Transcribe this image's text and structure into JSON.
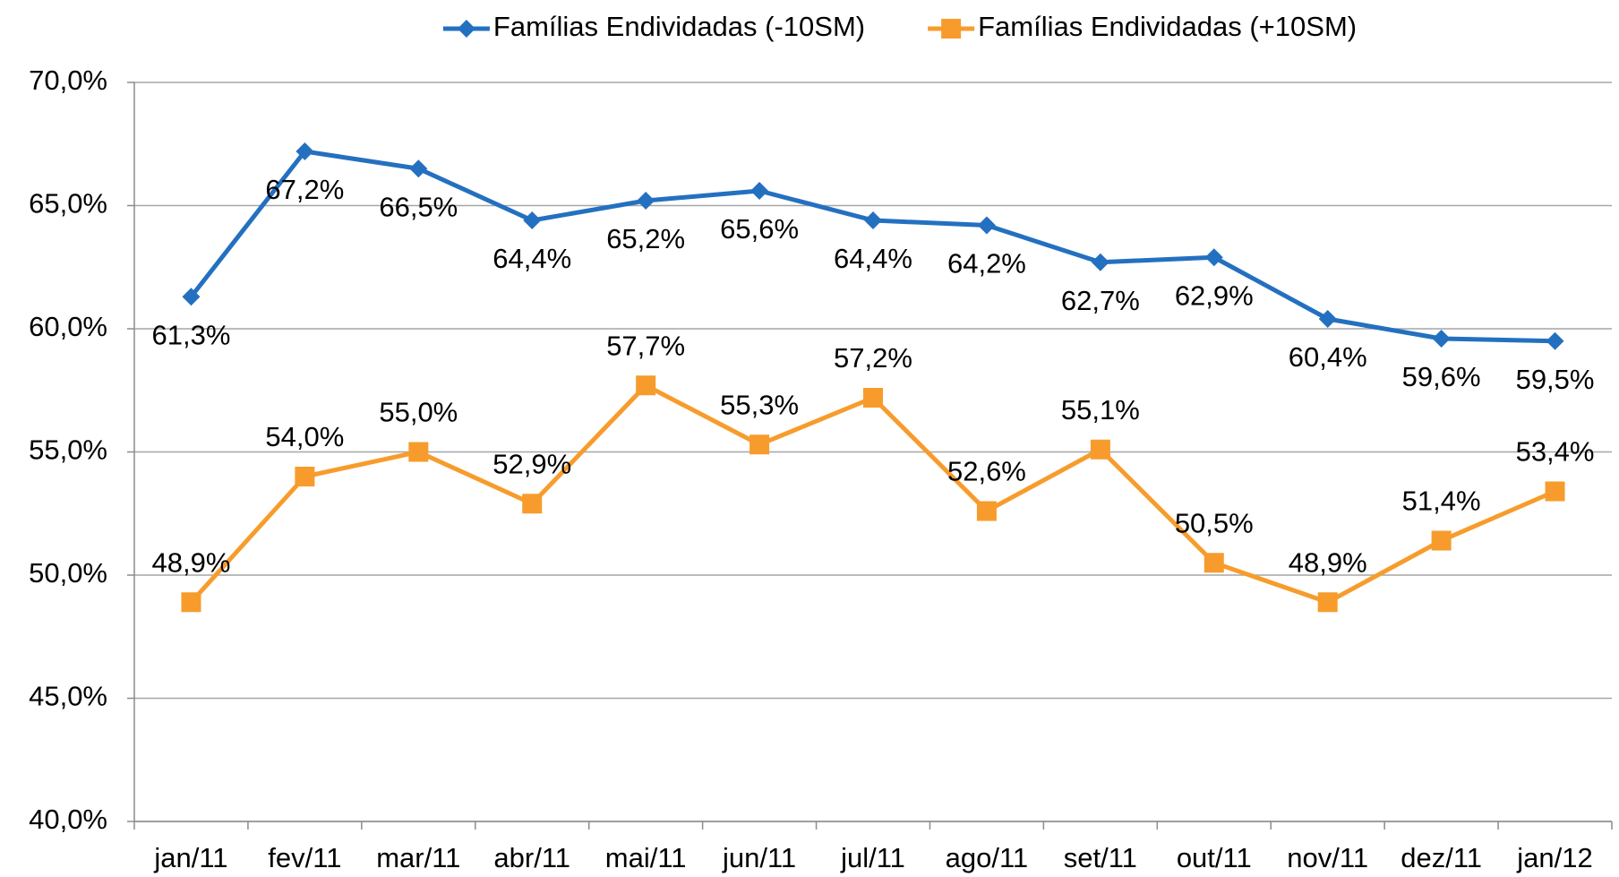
{
  "chart_data": {
    "type": "line",
    "categories": [
      "jan/11",
      "fev/11",
      "mar/11",
      "abr/11",
      "mai/11",
      "jun/11",
      "jul/11",
      "ago/11",
      "set/11",
      "out/11",
      "nov/11",
      "dez/11",
      "jan/12"
    ],
    "series": [
      {
        "name": "Famílias Endividadas (-10SM)",
        "color": "#2470c0",
        "marker": "diamond",
        "values": [
          61.3,
          67.2,
          66.5,
          64.4,
          65.2,
          65.6,
          64.4,
          64.2,
          62.7,
          62.9,
          60.4,
          59.6,
          59.5
        ],
        "value_labels": [
          "61,3%",
          "67,2%",
          "66,5%",
          "64,4%",
          "65,2%",
          "65,6%",
          "64,4%",
          "64,2%",
          "62,7%",
          "62,9%",
          "60,4%",
          "59,6%",
          "59,5%"
        ]
      },
      {
        "name": "Famílias Endividadas (+10SM)",
        "color": "#f79c2c",
        "marker": "square",
        "values": [
          48.9,
          54.0,
          55.0,
          52.9,
          57.7,
          55.3,
          57.2,
          52.6,
          55.1,
          50.5,
          48.9,
          51.4,
          53.4
        ],
        "value_labels": [
          "48,9%",
          "54,0%",
          "55,0%",
          "52,9%",
          "57,7%",
          "55,3%",
          "57,2%",
          "52,6%",
          "55,1%",
          "50,5%",
          "48,9%",
          "51,4%",
          "53,4%"
        ]
      }
    ],
    "ylim": [
      40,
      70
    ],
    "yticks": [
      {
        "value": 40,
        "label": "40,0%"
      },
      {
        "value": 45,
        "label": "45,0%"
      },
      {
        "value": 50,
        "label": "50,0%"
      },
      {
        "value": 55,
        "label": "55,0%"
      },
      {
        "value": 60,
        "label": "60,0%"
      },
      {
        "value": 65,
        "label": "65,0%"
      },
      {
        "value": 70,
        "label": "70,0%"
      }
    ],
    "grid": true,
    "legend": "top"
  }
}
